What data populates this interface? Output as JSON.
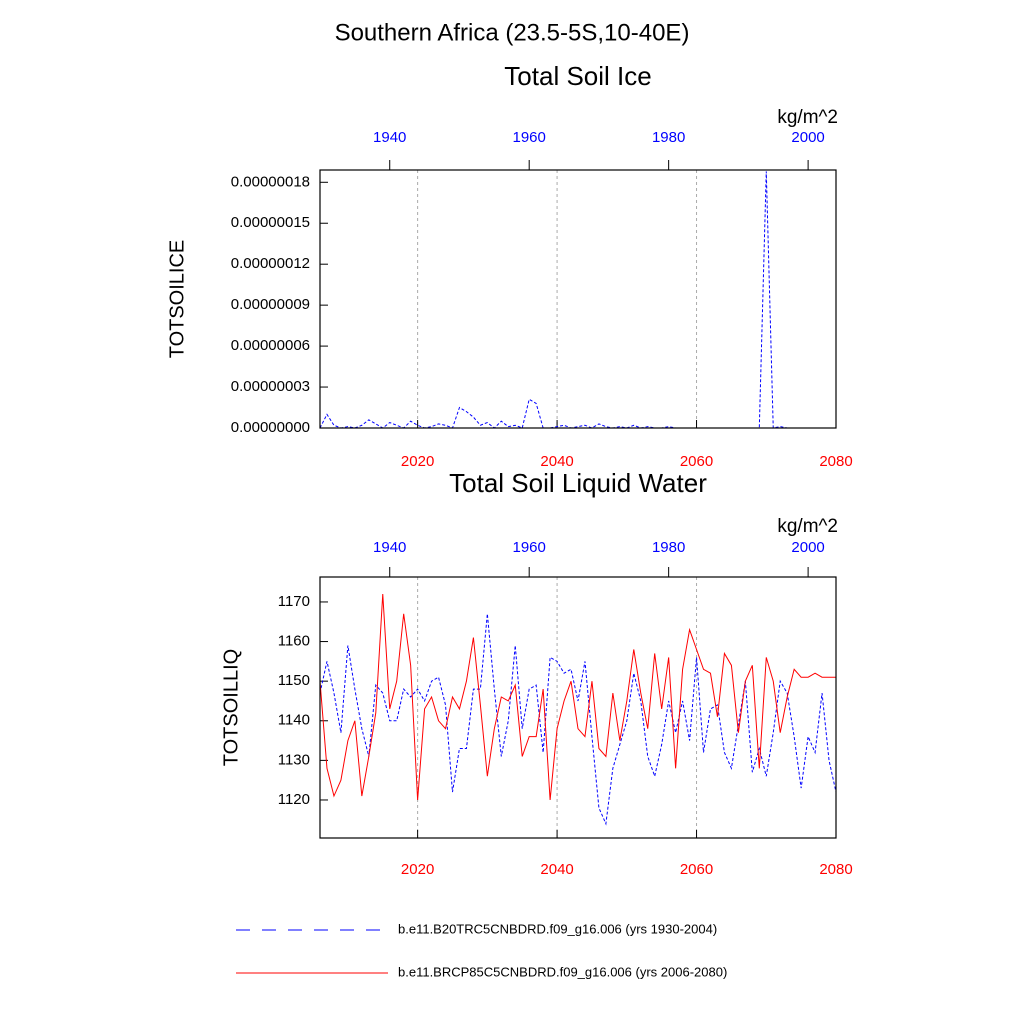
{
  "title": "Southern Africa (23.5-5S,10-40E)",
  "chart_data": [
    {
      "type": "line",
      "title": "Total Soil Ice",
      "ylabel": "TOTSOILICE",
      "units": "kg/m^2",
      "x": [
        2006,
        2007,
        2008,
        2009,
        2010,
        2011,
        2012,
        2013,
        2014,
        2015,
        2016,
        2017,
        2018,
        2019,
        2020,
        2021,
        2022,
        2023,
        2024,
        2025,
        2026,
        2027,
        2028,
        2029,
        2030,
        2031,
        2032,
        2033,
        2034,
        2035,
        2036,
        2037,
        2038,
        2039,
        2040,
        2041,
        2042,
        2043,
        2044,
        2045,
        2046,
        2047,
        2048,
        2049,
        2050,
        2051,
        2052,
        2053,
        2054,
        2055,
        2056,
        2057,
        2058,
        2059,
        2060,
        2061,
        2062,
        2063,
        2064,
        2065,
        2066,
        2067,
        2068,
        2069,
        2070,
        2071,
        2072,
        2073,
        2074,
        2075,
        2076,
        2077,
        2078,
        2079,
        2080
      ],
      "x2": [
        1930,
        1931,
        1932,
        1933,
        1934,
        1935,
        1936,
        1937,
        1938,
        1939,
        1940,
        1941,
        1942,
        1943,
        1944,
        1945,
        1946,
        1947,
        1948,
        1949,
        1950,
        1951,
        1952,
        1953,
        1954,
        1955,
        1956,
        1957,
        1958,
        1959,
        1960,
        1961,
        1962,
        1963,
        1964,
        1965,
        1966,
        1967,
        1968,
        1969,
        1970,
        1971,
        1972,
        1973,
        1974,
        1975,
        1976,
        1977,
        1978,
        1979,
        1980,
        1981,
        1982,
        1983,
        1984,
        1985,
        1986,
        1987,
        1988,
        1989,
        1990,
        1991,
        1992,
        1993,
        1994,
        1995,
        1996,
        1997,
        1998,
        1999,
        2000,
        2001,
        2002,
        2003,
        2004
      ],
      "xlim": [
        2006,
        2080
      ],
      "xticks": [
        2020,
        2040,
        2060,
        2080
      ],
      "xtick_color": "#ff0000",
      "x2lim": [
        1930,
        2004
      ],
      "x2ticks": [
        1940,
        1960,
        1980,
        2000
      ],
      "x2tick_color": "#0000ff",
      "ylim": [
        0,
        1.89e-07
      ],
      "yticks": [
        {
          "value": 0,
          "label": "0.00000000"
        },
        {
          "value": 3e-08,
          "label": "0.00000003"
        },
        {
          "value": 6e-08,
          "label": "0.00000006"
        },
        {
          "value": 9e-08,
          "label": "0.00000009"
        },
        {
          "value": 1.2e-07,
          "label": "0.00000012"
        },
        {
          "value": 1.5e-07,
          "label": "0.00000015"
        },
        {
          "value": 1.8e-07,
          "label": "0.00000018"
        }
      ],
      "grid": true,
      "series": [
        {
          "color": "#0000ff",
          "dash": true,
          "axis": "x2",
          "values": [
            0,
            1e-08,
            2e-09,
            0,
            1e-09,
            0,
            2e-09,
            6e-09,
            3e-09,
            0,
            4e-09,
            2e-09,
            0,
            5e-09,
            2e-09,
            0,
            1e-09,
            3e-09,
            2e-09,
            0,
            1.5e-08,
            1.2e-08,
            8e-09,
            2e-09,
            4e-09,
            0,
            5e-09,
            1e-09,
            2e-09,
            0,
            2.1e-08,
            1.8e-08,
            0,
            0,
            1e-09,
            2e-09,
            0,
            1e-09,
            2e-09,
            0,
            3e-09,
            1e-09,
            0,
            1e-09,
            0,
            2e-09,
            0,
            1e-09,
            0,
            0,
            1e-09,
            0,
            0,
            0,
            0,
            0,
            0,
            0,
            0,
            0,
            0,
            0,
            0,
            0,
            1.88e-07,
            0,
            1e-09,
            0,
            0,
            0,
            0,
            0,
            0,
            0,
            0
          ]
        },
        {
          "color": "#ff0000",
          "dash": false,
          "values": [
            0,
            0,
            0,
            0,
            0,
            0,
            0,
            0,
            0,
            0,
            0,
            0,
            0,
            0,
            0,
            0,
            0,
            0,
            0,
            0,
            0,
            0,
            0,
            0,
            0,
            0,
            0,
            0,
            0,
            0,
            0,
            0,
            0,
            0,
            0,
            0,
            0,
            0,
            0,
            0,
            0,
            0,
            0,
            0,
            0,
            0,
            0,
            0,
            0,
            0,
            0,
            0,
            0,
            0,
            0,
            0,
            0,
            0,
            0,
            0,
            0,
            0,
            0,
            0,
            0,
            0,
            0,
            0,
            0,
            0,
            0,
            0,
            0,
            0,
            0
          ]
        }
      ]
    },
    {
      "type": "line",
      "title": "Total Soil Liquid Water",
      "ylabel": "TOTSOILLIQ",
      "units": "kg/m^2",
      "x": [
        2006,
        2007,
        2008,
        2009,
        2010,
        2011,
        2012,
        2013,
        2014,
        2015,
        2016,
        2017,
        2018,
        2019,
        2020,
        2021,
        2022,
        2023,
        2024,
        2025,
        2026,
        2027,
        2028,
        2029,
        2030,
        2031,
        2032,
        2033,
        2034,
        2035,
        2036,
        2037,
        2038,
        2039,
        2040,
        2041,
        2042,
        2043,
        2044,
        2045,
        2046,
        2047,
        2048,
        2049,
        2050,
        2051,
        2052,
        2053,
        2054,
        2055,
        2056,
        2057,
        2058,
        2059,
        2060,
        2061,
        2062,
        2063,
        2064,
        2065,
        2066,
        2067,
        2068,
        2069,
        2070,
        2071,
        2072,
        2073,
        2074,
        2075,
        2076,
        2077,
        2078,
        2079,
        2080
      ],
      "x2": [
        1930,
        1931,
        1932,
        1933,
        1934,
        1935,
        1936,
        1937,
        1938,
        1939,
        1940,
        1941,
        1942,
        1943,
        1944,
        1945,
        1946,
        1947,
        1948,
        1949,
        1950,
        1951,
        1952,
        1953,
        1954,
        1955,
        1956,
        1957,
        1958,
        1959,
        1960,
        1961,
        1962,
        1963,
        1964,
        1965,
        1966,
        1967,
        1968,
        1969,
        1970,
        1971,
        1972,
        1973,
        1974,
        1975,
        1976,
        1977,
        1978,
        1979,
        1980,
        1981,
        1982,
        1983,
        1984,
        1985,
        1986,
        1987,
        1988,
        1989,
        1990,
        1991,
        1992,
        1993,
        1994,
        1995,
        1996,
        1997,
        1998,
        1999,
        2000,
        2001,
        2002,
        2003,
        2004
      ],
      "xlim": [
        2006,
        2080
      ],
      "xticks": [
        2020,
        2040,
        2060,
        2080
      ],
      "xtick_color": "#ff0000",
      "x2lim": [
        1930,
        2004
      ],
      "x2ticks": [
        1940,
        1960,
        1980,
        2000
      ],
      "x2tick_color": "#0000ff",
      "ylim": [
        1110.4,
        1176.3
      ],
      "yticks": [
        1120,
        1130,
        1140,
        1150,
        1160,
        1170
      ],
      "grid": true,
      "series": [
        {
          "name": "b.e11.B20TRC5CNBDRD.f09_g16.006 (yrs 1930-2004)",
          "color": "#0000ff",
          "dash": true,
          "axis": "x2",
          "values": [
            1147,
            1155,
            1147,
            1137,
            1159,
            1148,
            1138,
            1131,
            1149,
            1147,
            1140,
            1140,
            1148,
            1146,
            1148,
            1145,
            1150,
            1151,
            1144,
            1122,
            1133,
            1133,
            1148,
            1148,
            1167,
            1148,
            1131,
            1140,
            1159,
            1138,
            1148,
            1149,
            1132,
            1156,
            1155,
            1152,
            1153,
            1145,
            1155,
            1136,
            1118,
            1114,
            1128,
            1134,
            1140,
            1152,
            1145,
            1131,
            1126,
            1134,
            1145,
            1137,
            1145,
            1135,
            1156,
            1132,
            1143,
            1144,
            1132,
            1128,
            1139,
            1150,
            1127,
            1133,
            1126,
            1137,
            1150,
            1147,
            1136,
            1123,
            1136,
            1132,
            1147,
            1130,
            1122
          ]
        },
        {
          "name": "b.e11.BRCP85C5CNBDRD.f09_g16.006 (yrs 2006-2080)",
          "color": "#ff0000",
          "dash": false,
          "values": [
            1150,
            1128,
            1121,
            1125,
            1135,
            1140,
            1121,
            1131,
            1142,
            1172,
            1143,
            1150,
            1167,
            1154,
            1120,
            1143,
            1146,
            1140,
            1138,
            1146,
            1143,
            1150,
            1161,
            1144,
            1126,
            1138,
            1146,
            1145,
            1149,
            1131,
            1136,
            1136,
            1148,
            1120,
            1138,
            1145,
            1150,
            1138,
            1136,
            1150,
            1133,
            1131,
            1147,
            1135,
            1145,
            1158,
            1147,
            1138,
            1157,
            1143,
            1156,
            1128,
            1153,
            1163,
            1158,
            1153,
            1152,
            1141,
            1157,
            1154,
            1137,
            1150,
            1154,
            1128,
            1156,
            1150,
            1137,
            1146,
            1153,
            1151,
            1151,
            1152,
            1151,
            1151,
            1151
          ]
        }
      ]
    }
  ]
}
